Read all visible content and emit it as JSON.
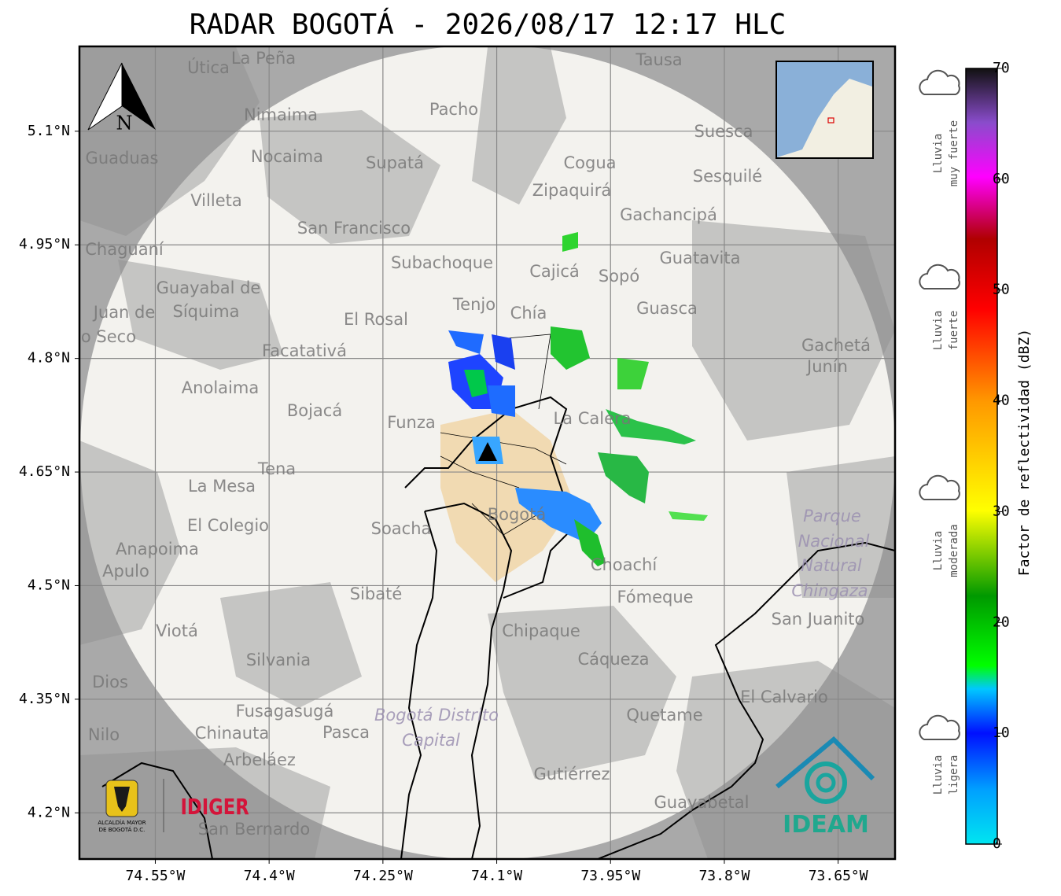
{
  "title": "RADAR BOGOTÁ - 2026/08/17 12:17 HLC",
  "map": {
    "xlim": [
      -74.65,
      -73.575
    ],
    "ylim": [
      4.139,
      5.212
    ],
    "xticks": [
      {
        "value": -74.55,
        "label": "74.55°W"
      },
      {
        "value": -74.4,
        "label": "74.4°W"
      },
      {
        "value": -74.25,
        "label": "74.25°W"
      },
      {
        "value": -74.1,
        "label": "74.1°W"
      },
      {
        "value": -73.95,
        "label": "73.95°W"
      },
      {
        "value": -73.8,
        "label": "73.8°W"
      },
      {
        "value": -73.65,
        "label": "73.65°W"
      }
    ],
    "yticks": [
      {
        "value": 5.1,
        "label": "5.1°N"
      },
      {
        "value": 4.95,
        "label": "4.95°N"
      },
      {
        "value": 4.8,
        "label": "4.8°N"
      },
      {
        "value": 4.65,
        "label": "4.65°N"
      },
      {
        "value": 4.5,
        "label": "4.5°N"
      },
      {
        "value": 4.35,
        "label": "4.35°N"
      },
      {
        "value": 4.2,
        "label": "4.2°N"
      }
    ],
    "north": "N",
    "places": [
      "La Peña",
      "Útica",
      "Tausa",
      "Pacho",
      "Nimaima",
      "Guaduas",
      "Nocaima",
      "Supatá",
      "Cogua",
      "Suesca",
      "Sesquilé",
      "Zipaquirá",
      "Villeta",
      "Gachancipá",
      "San Francisco",
      "Chaguaní",
      "Guatavita",
      "Subachoque",
      "Cajicá",
      "Sopó",
      "Guayabal de",
      "Síquima",
      "Tenjo",
      "Chía",
      "Guasca",
      "El Rosal",
      "Facatativá",
      "Gachetá",
      "Junín",
      "Anolaima",
      "Bojacá",
      "Funza",
      "La Calera",
      "Tena",
      "La Mesa",
      "Soacha",
      "El Colegio",
      "Anapoima",
      "Apulo",
      "Choachí",
      "Sibaté",
      "Fómeque",
      "San Juanito",
      "Viotá",
      "Chipaque",
      "Silvania",
      "Cáqueza",
      "Dios",
      "El Calvario",
      "Fusagasugá",
      "Quetame",
      "Pasca",
      "Chinauta",
      "Nilo",
      "Arbeláez",
      "Gutiérrez",
      "Guayabetal",
      "San Bernardo",
      "Bogotá",
      "Juan de",
      "o Seco",
      "Parque",
      "Nacional",
      "Natural",
      "Chingaza",
      "Bogotá Distrito",
      "Capital"
    ]
  },
  "colorbar": {
    "label": "Factor de reflectividad (dBZ)",
    "lim": [
      0,
      70
    ],
    "ticks": [
      0,
      10,
      20,
      30,
      40,
      50,
      60,
      70
    ]
  },
  "legend": [
    [
      "Lluvia",
      "muy fuerte"
    ],
    [
      "Lluvia",
      "fuerte"
    ],
    [
      "Lluvia",
      "moderada"
    ],
    [
      "Lluvia",
      "ligera"
    ]
  ],
  "logos": {
    "alcaldia": [
      "ALCALDÍA MAYOR",
      "DE BOGOTÁ D.C."
    ],
    "idiger": "IDIGER",
    "ideam": "IDEAM"
  }
}
